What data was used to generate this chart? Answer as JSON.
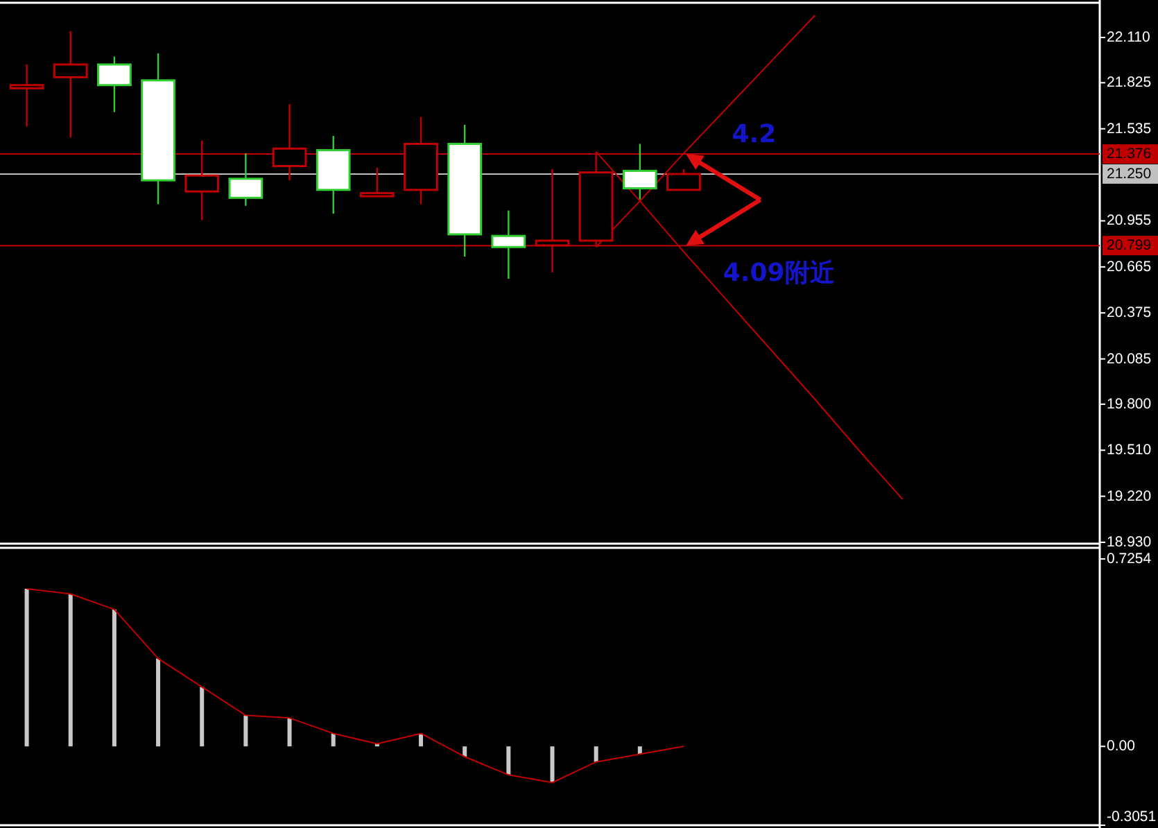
{
  "chart_data": [
    {
      "type": "candlestick",
      "categories": [
        null,
        null,
        null,
        null,
        null,
        null,
        null,
        null,
        null,
        null,
        null,
        null,
        null,
        null,
        null,
        null,
        null,
        null,
        null,
        null,
        null,
        null,
        null,
        null,
        null
      ],
      "ohlc": [
        [
          21.79,
          21.94,
          21.55,
          21.81
        ],
        [
          21.86,
          22.15,
          21.48,
          21.94
        ],
        [
          21.94,
          21.99,
          21.64,
          21.81
        ],
        [
          21.84,
          22.01,
          21.06,
          21.21
        ],
        [
          21.14,
          21.46,
          20.96,
          21.24
        ],
        [
          21.22,
          21.38,
          21.05,
          21.1
        ],
        [
          21.3,
          21.69,
          21.21,
          21.41
        ],
        [
          21.4,
          21.49,
          21.0,
          21.15
        ],
        [
          21.11,
          21.29,
          21.11,
          21.13
        ],
        [
          21.15,
          21.61,
          21.06,
          21.44
        ],
        [
          21.44,
          21.56,
          20.73,
          20.87
        ],
        [
          20.86,
          21.02,
          20.59,
          20.79
        ],
        [
          20.8,
          21.28,
          20.63,
          20.83
        ],
        [
          20.83,
          21.39,
          20.79,
          21.26
        ],
        [
          21.27,
          21.44,
          21.09,
          21.16
        ],
        [
          21.15,
          21.28,
          21.15,
          21.25
        ],
        null,
        null,
        null,
        null,
        null,
        null,
        null,
        null,
        null
      ],
      "colors": [
        "#c00000",
        "#c00000",
        "#32cd32",
        "#32cd32",
        "#c00000",
        "#32cd32",
        "#c00000",
        "#32cd32",
        "#c00000",
        "#c00000",
        "#32cd32",
        "#32cd32",
        "#c00000",
        "#c00000",
        "#32cd32",
        "#c00000",
        null,
        null,
        null,
        null,
        null,
        null,
        null,
        null,
        null
      ],
      "series": [
        {
          "type": "line",
          "color": "#c00000",
          "values": [
            null,
            null,
            null,
            null,
            null,
            null,
            null,
            null,
            null,
            null,
            null,
            null,
            null,
            20.79,
            21.08,
            21.38,
            21.67,
            21.96,
            22.25,
            null,
            null,
            null,
            null,
            null,
            null
          ]
        },
        {
          "type": "line",
          "color": "#c00000",
          "values": [
            null,
            null,
            null,
            null,
            null,
            null,
            null,
            null,
            null,
            null,
            null,
            null,
            null,
            21.39,
            21.08,
            20.76,
            20.45,
            20.14,
            19.83,
            19.51,
            19.2,
            null,
            null,
            null,
            null
          ]
        }
      ],
      "ylim": [
        18.93,
        22.32
      ],
      "yticks": [
        {
          "value": 22.11,
          "label": "22.110"
        },
        {
          "value": 21.825,
          "label": "21.825"
        },
        {
          "value": 21.535,
          "label": "21.535"
        },
        {
          "value": 20.955,
          "label": "20.955"
        },
        {
          "value": 20.665,
          "label": "20.665"
        },
        {
          "value": 20.375,
          "label": "20.375"
        },
        {
          "value": 20.085,
          "label": "20.085"
        },
        {
          "value": 19.8,
          "label": "19.800"
        },
        {
          "value": 19.51,
          "label": "19.510"
        },
        {
          "value": 19.22,
          "label": "19.220"
        },
        {
          "value": 18.93,
          "label": "18.930"
        }
      ],
      "ref_lines": [
        {
          "axis": "y",
          "value": 21.376,
          "label": "21.376",
          "color": "#c00000"
        },
        {
          "axis": "y",
          "value": 21.25,
          "label": "21.250",
          "color": "#c0c0c0"
        },
        {
          "axis": "y",
          "value": 20.799,
          "label": "20.799",
          "color": "#c00000"
        }
      ],
      "annotations": [
        "4.2",
        "4.09附近"
      ],
      "tick_labels": "y"
    },
    {
      "type": "bar",
      "categories": [
        null,
        null,
        null,
        null,
        null,
        null,
        null,
        null,
        null,
        null,
        null,
        null,
        null,
        null,
        null,
        null,
        null,
        null,
        null,
        null,
        null,
        null,
        null,
        null,
        null
      ],
      "series": [
        {
          "type": "bar",
          "color": "#c8c8c8",
          "values": [
            0.61,
            0.59,
            0.53,
            0.34,
            0.23,
            0.12,
            0.11,
            0.05,
            0.01,
            0.05,
            -0.04,
            -0.11,
            -0.14,
            -0.06,
            -0.03,
            null,
            null,
            null,
            null,
            null,
            null,
            null,
            null,
            null,
            null
          ]
        },
        {
          "type": "line",
          "color": "#c00000",
          "values": [
            0.61,
            0.59,
            0.53,
            0.34,
            0.23,
            0.12,
            0.11,
            0.05,
            0.01,
            0.05,
            -0.04,
            -0.11,
            -0.14,
            -0.06,
            -0.03,
            0.0,
            null,
            null,
            null,
            null,
            null,
            null,
            null,
            null,
            null
          ]
        }
      ],
      "ylim": [
        -0.3051,
        0.7254
      ],
      "yticks": [
        0.7254,
        {
          "value": 0,
          "label": "0.00"
        },
        -0.3051
      ],
      "tick_labels": "y"
    }
  ]
}
